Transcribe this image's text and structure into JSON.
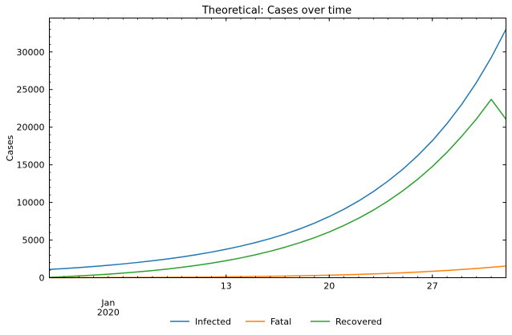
{
  "chart_data": {
    "type": "line",
    "title": "Theoretical: Cases over time",
    "xlabel": "",
    "ylabel": "Cases",
    "x_start_date": "2020-01-01",
    "xlim": [
      "2020-01-01",
      "2020-02-01"
    ],
    "ylim": [
      0,
      34500
    ],
    "xticks": [
      {
        "date": "2020-01-13",
        "label": "13"
      },
      {
        "date": "2020-01-20",
        "label": "20"
      },
      {
        "date": "2020-01-27",
        "label": "27"
      }
    ],
    "month_label": {
      "date": "2020-01-05",
      "lines": [
        "Jan",
        "2020"
      ]
    },
    "yticks": [
      0,
      5000,
      10000,
      15000,
      20000,
      25000,
      30000
    ],
    "grid": false,
    "legend_position": "bottom-center",
    "series": [
      {
        "name": "Infected",
        "color": "#1f77b4",
        "dates": [
          "2020-01-01",
          "2020-01-02",
          "2020-01-03",
          "2020-01-04",
          "2020-01-05",
          "2020-01-06",
          "2020-01-07",
          "2020-01-08",
          "2020-01-09",
          "2020-01-10",
          "2020-01-11",
          "2020-01-12",
          "2020-01-13",
          "2020-01-14",
          "2020-01-15",
          "2020-01-16",
          "2020-01-17",
          "2020-01-18",
          "2020-01-19",
          "2020-01-20",
          "2020-01-21",
          "2020-01-22",
          "2020-01-23",
          "2020-01-24",
          "2020-01-25",
          "2020-01-26",
          "2020-01-27",
          "2020-01-28",
          "2020-01-29",
          "2020-01-30",
          "2020-01-31",
          "2020-02-01"
        ],
        "values": [
          1100,
          1210,
          1340,
          1490,
          1650,
          1830,
          2030,
          2250,
          2490,
          2760,
          3060,
          3400,
          3780,
          4200,
          4670,
          5200,
          5800,
          6480,
          7250,
          8120,
          9100,
          10200,
          11450,
          12850,
          14420,
          16200,
          18200,
          20480,
          23050,
          25950,
          29250,
          33000
        ]
      },
      {
        "name": "Fatal",
        "color": "#ff7f0e",
        "dates": [
          "2020-01-01",
          "2020-01-02",
          "2020-01-03",
          "2020-01-04",
          "2020-01-05",
          "2020-01-06",
          "2020-01-07",
          "2020-01-08",
          "2020-01-09",
          "2020-01-10",
          "2020-01-11",
          "2020-01-12",
          "2020-01-13",
          "2020-01-14",
          "2020-01-15",
          "2020-01-16",
          "2020-01-17",
          "2020-01-18",
          "2020-01-19",
          "2020-01-20",
          "2020-01-21",
          "2020-01-22",
          "2020-01-23",
          "2020-01-24",
          "2020-01-25",
          "2020-01-26",
          "2020-01-27",
          "2020-01-28",
          "2020-01-29",
          "2020-01-30",
          "2020-01-31",
          "2020-02-01"
        ],
        "values": [
          0,
          4,
          9,
          14,
          20,
          27,
          35,
          44,
          54,
          66,
          80,
          96,
          114,
          135,
          158,
          185,
          215,
          250,
          290,
          335,
          385,
          442,
          505,
          577,
          657,
          747,
          848,
          960,
          1085,
          1225,
          1380,
          1550
        ]
      },
      {
        "name": "Recovered",
        "color": "#2ca02c",
        "dates": [
          "2020-01-01",
          "2020-01-02",
          "2020-01-03",
          "2020-01-04",
          "2020-01-05",
          "2020-01-06",
          "2020-01-07",
          "2020-01-08",
          "2020-01-09",
          "2020-01-10",
          "2020-01-11",
          "2020-01-12",
          "2020-01-13",
          "2020-01-14",
          "2020-01-15",
          "2020-01-16",
          "2020-01-17",
          "2020-01-18",
          "2020-01-19",
          "2020-01-20",
          "2020-01-21",
          "2020-01-22",
          "2020-01-23",
          "2020-01-24",
          "2020-01-25",
          "2020-01-26",
          "2020-01-27",
          "2020-01-28",
          "2020-01-29",
          "2020-01-30",
          "2020-01-31",
          "2020-02-01"
        ],
        "values": [
          50,
          140,
          240,
          350,
          470,
          610,
          770,
          950,
          1150,
          1380,
          1640,
          1930,
          2260,
          2630,
          3050,
          3520,
          4050,
          4650,
          5320,
          6080,
          6940,
          7900,
          8980,
          10190,
          11550,
          13070,
          14770,
          16670,
          18800,
          21100,
          23700,
          21050
        ]
      }
    ]
  }
}
